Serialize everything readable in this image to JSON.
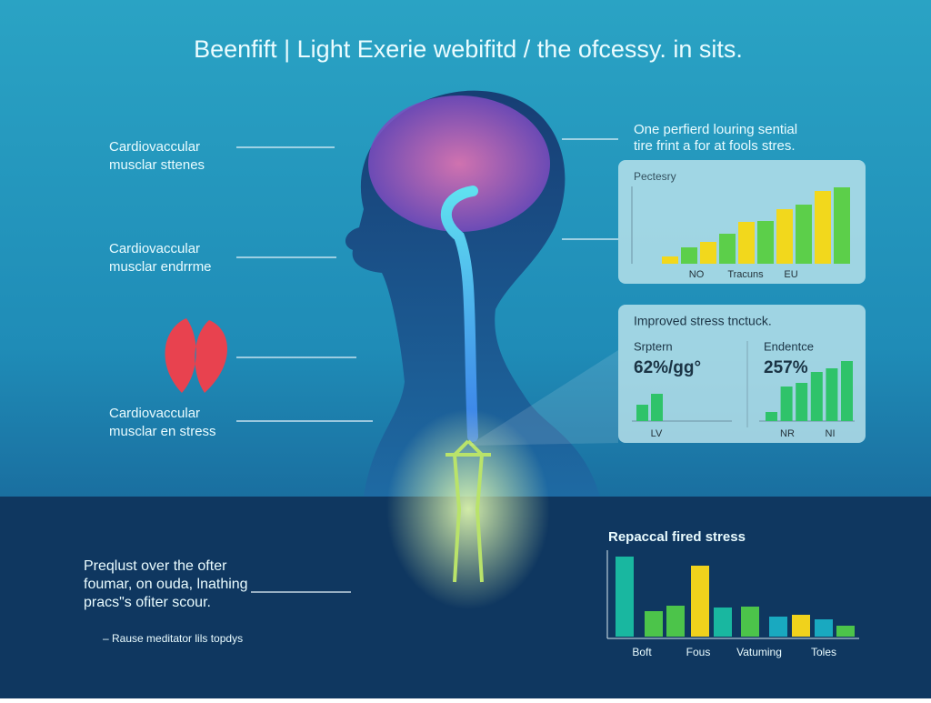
{
  "title": "Beenfift | Light Exerie webifitd / the ofcessy. in sits.",
  "left_labels": [
    [
      "Cardiovaccular",
      "musclаr sttenes"
    ],
    [
      "Cardiovaccular",
      "musclаr endrrme"
    ],
    [
      "Cardiovaccular",
      "musclаr еn stress"
    ]
  ],
  "right_note": [
    "One perfierd louring sential",
    "tire frint a for at fools stres."
  ],
  "panel1": {
    "title": "Pectesry",
    "axis_labels": [
      "NO",
      "Tracuns",
      "EU"
    ],
    "values": [
      8,
      18,
      24,
      33,
      46,
      47,
      60,
      65,
      80,
      84
    ],
    "colors": [
      "#f2d81c",
      "#5ccf4a",
      "#f2d81c",
      "#5ccf4a",
      "#f2d81c",
      "#5ccf4a",
      "#f2d81c",
      "#5ccf4a",
      "#f2d81c",
      "#5ccf4a"
    ]
  },
  "panel2": {
    "title": "Improved stress tnctuck.",
    "left": {
      "label": "Srptern",
      "value_text": "62%/gg°",
      "values": [
        18,
        30
      ],
      "axis_labels": [
        "LV"
      ]
    },
    "right": {
      "label": "Endentce",
      "value_text": "257%",
      "values": [
        10,
        38,
        42,
        54,
        58,
        66
      ],
      "axis_labels": [
        "NR",
        "NI"
      ]
    },
    "color": "#2fc36a"
  },
  "bottom_text": [
    "Preqlust over the ofter",
    "foumar, on ouda, lnathing",
    "pracs\"s ofiter scour."
  ],
  "footnote": "– Rause meditator lils topdys",
  "panel3": {
    "title": "Repaccal fired stress",
    "axis_labels": [
      "Boft",
      "Fous",
      "Vatuming",
      "Toles"
    ],
    "values": [
      88,
      28,
      34,
      78,
      32,
      33,
      22,
      24,
      19,
      12
    ],
    "colors": [
      "#19b7a0",
      "#4cc44a",
      "#4cc44a",
      "#f0d21c",
      "#19b7a0",
      "#4cc44a",
      "#19a9c0",
      "#f0d21c",
      "#19a9c0",
      "#4cc44a"
    ]
  }
}
